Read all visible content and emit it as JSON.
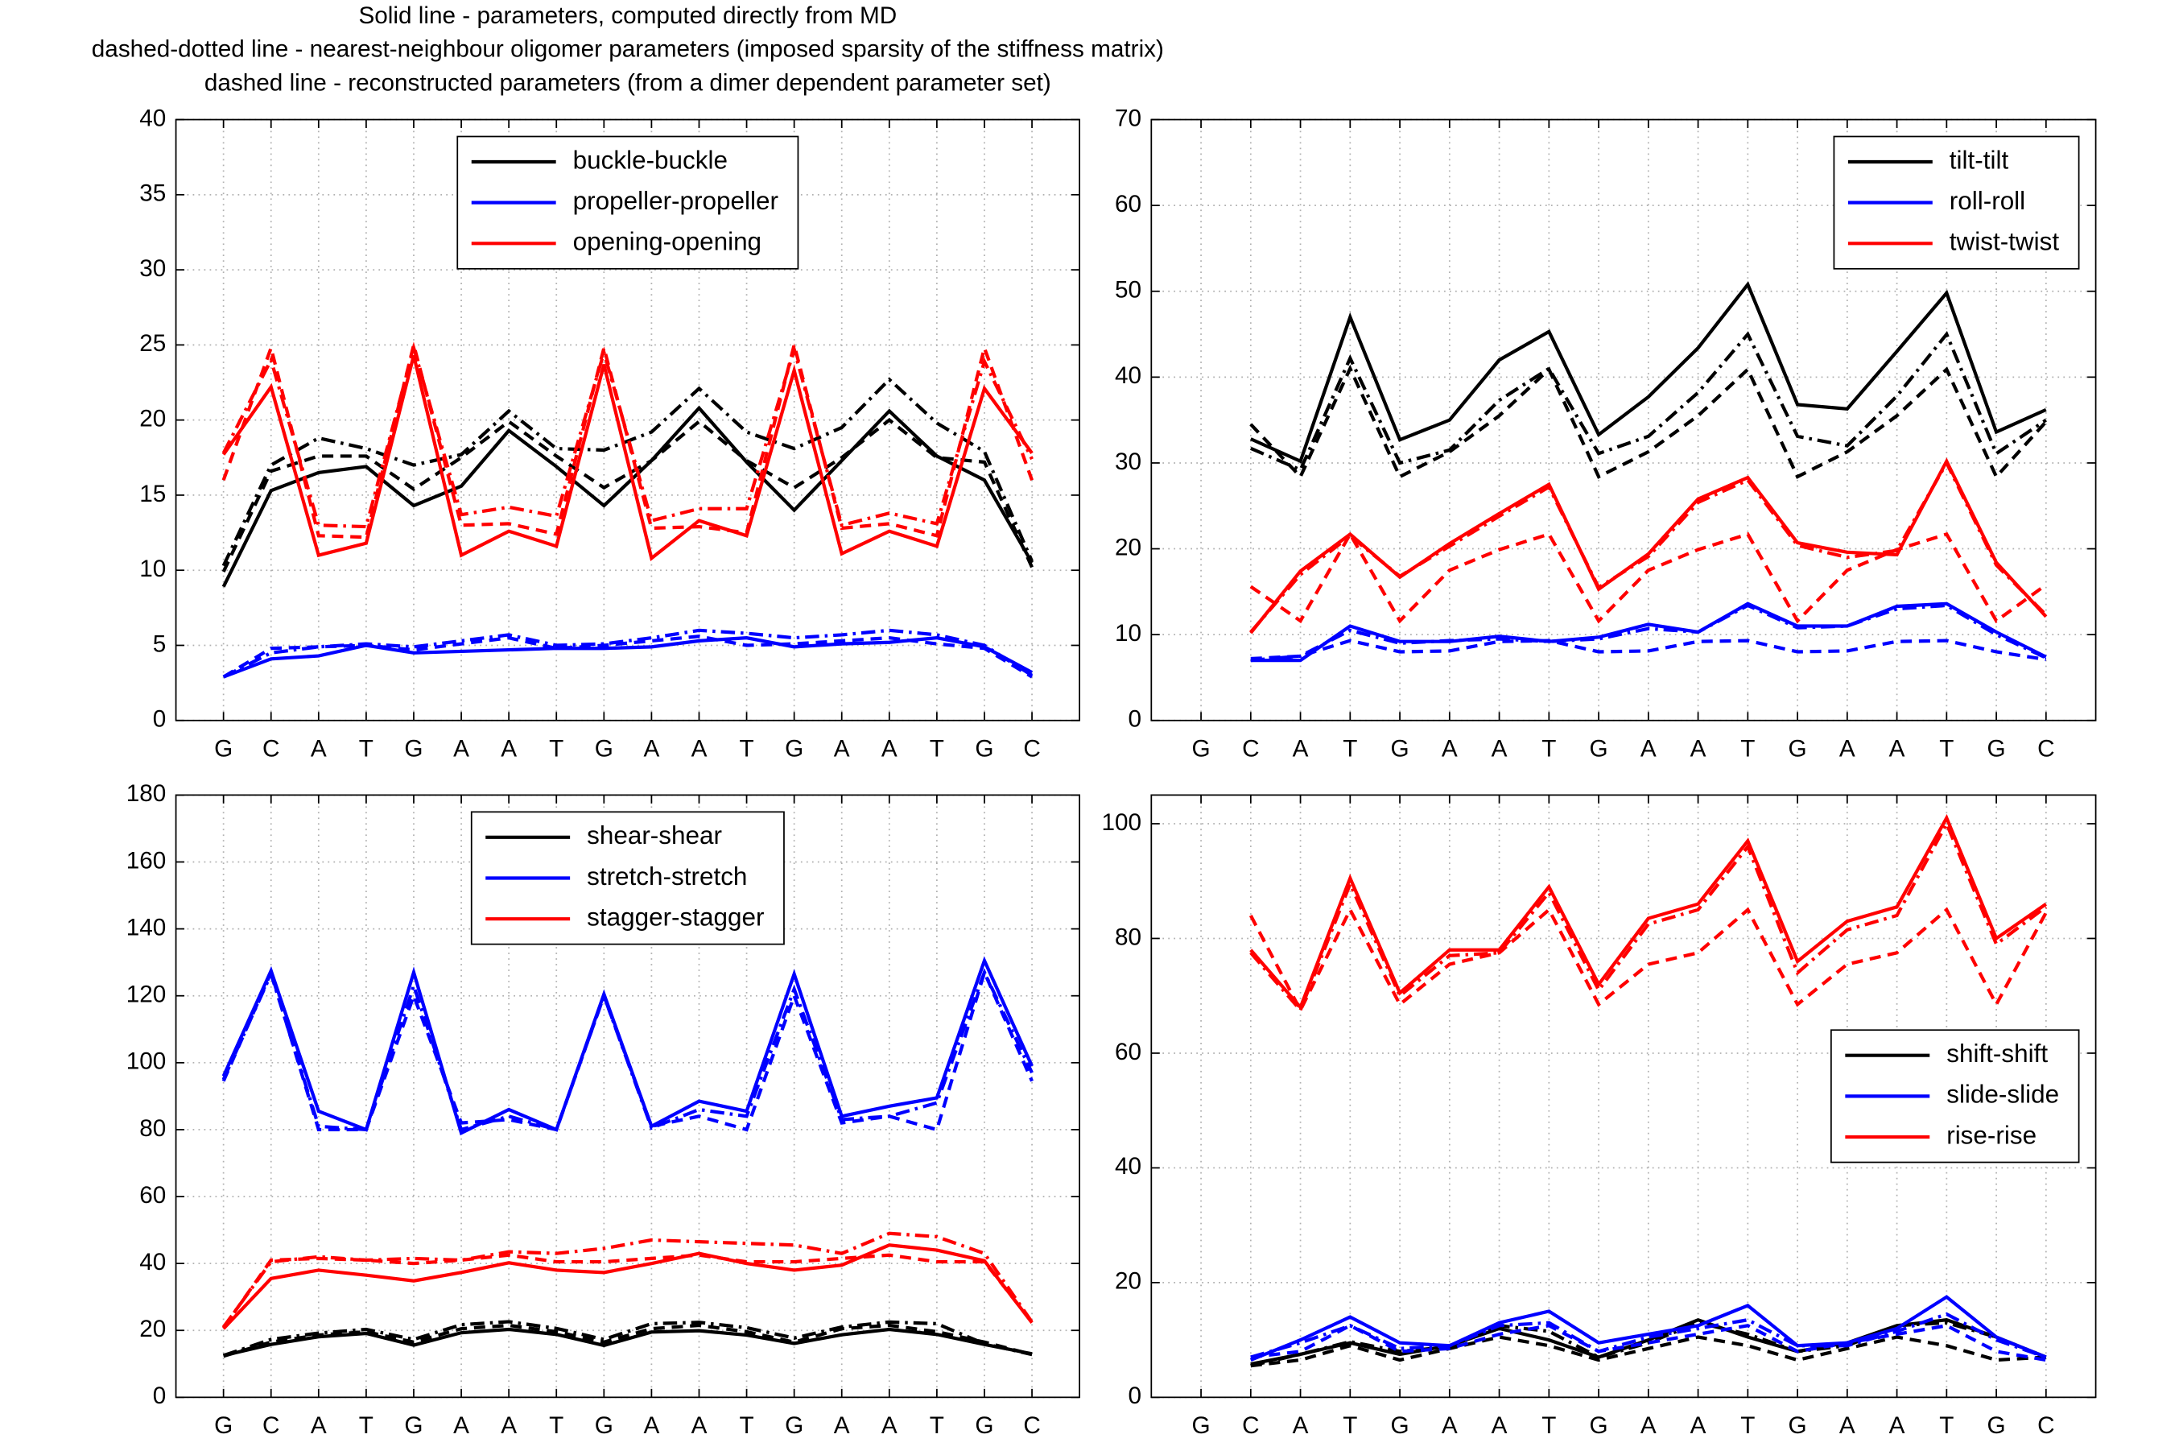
{
  "chart_data": [
    {
      "type": "line",
      "title": [
        "Solid line - parameters, computed directly from MD",
        "dashed-dotted line - nearest-neighbour oligomer parameters (imposed sparsity of the stiffness matrix)",
        "dashed line - reconstructed parameters (from a dimer dependent parameter set)"
      ],
      "categories": [
        "G",
        "C",
        "A",
        "T",
        "G",
        "A",
        "A",
        "T",
        "G",
        "A",
        "A",
        "T",
        "G",
        "A",
        "A",
        "T",
        "G",
        "C"
      ],
      "ylim": [
        0,
        40
      ],
      "yticks": [
        0,
        5,
        10,
        15,
        20,
        25,
        30,
        35,
        40
      ],
      "grid": true,
      "legend": "upper center",
      "series": [
        {
          "name": "buckle-buckle",
          "color": "#000000",
          "style": "solid",
          "values": [
            8.9,
            15.3,
            16.5,
            16.9,
            14.3,
            15.6,
            19.3,
            16.9,
            14.3,
            17.3,
            20.8,
            17.2,
            14.0,
            17.3,
            20.6,
            17.6,
            16.0,
            10.5
          ]
        },
        {
          "name": "buckle-buckle",
          "color": "#000000",
          "style": "dashdot",
          "values": [
            10.3,
            17.0,
            18.8,
            18.1,
            17.0,
            17.7,
            20.6,
            18.1,
            18.0,
            19.2,
            22.1,
            19.2,
            18.1,
            19.5,
            22.7,
            19.8,
            17.9,
            10.6
          ]
        },
        {
          "name": "buckle-buckle",
          "color": "#000000",
          "style": "dashed",
          "values": [
            9.9,
            16.6,
            17.6,
            17.6,
            15.4,
            17.5,
            19.9,
            17.6,
            15.5,
            17.3,
            19.9,
            17.3,
            15.5,
            17.5,
            20.0,
            17.5,
            17.2,
            10.2
          ]
        },
        {
          "name": "propeller-propeller",
          "color": "#0000ff",
          "style": "solid",
          "values": [
            2.9,
            4.1,
            4.3,
            5.0,
            4.5,
            4.6,
            4.7,
            4.8,
            4.8,
            4.9,
            5.3,
            5.5,
            4.9,
            5.1,
            5.2,
            5.5,
            4.9,
            3.2
          ]
        },
        {
          "name": "propeller-propeller",
          "color": "#0000ff",
          "style": "dashdot",
          "values": [
            2.9,
            4.5,
            4.9,
            5.1,
            4.9,
            5.3,
            5.7,
            5.0,
            5.1,
            5.5,
            6.0,
            5.8,
            5.5,
            5.7,
            6.0,
            5.7,
            5.0,
            3.0
          ]
        },
        {
          "name": "propeller-propeller",
          "color": "#0000ff",
          "style": "dashed",
          "values": [
            2.9,
            4.8,
            4.9,
            5.0,
            4.7,
            5.1,
            5.5,
            4.8,
            5.0,
            5.3,
            5.6,
            5.0,
            5.1,
            5.3,
            5.5,
            5.1,
            4.8,
            2.9
          ]
        },
        {
          "name": "opening-opening",
          "color": "#ff0000",
          "style": "solid",
          "values": [
            17.7,
            22.2,
            11.0,
            11.8,
            24.3,
            11.0,
            12.6,
            11.6,
            23.7,
            10.8,
            13.3,
            12.3,
            23.3,
            11.1,
            12.6,
            11.6,
            22.1,
            17.8
          ]
        },
        {
          "name": "opening-opening",
          "color": "#ff0000",
          "style": "dashdot",
          "values": [
            17.8,
            24.0,
            13.0,
            12.9,
            24.8,
            13.7,
            14.2,
            13.6,
            24.5,
            13.3,
            14.1,
            14.1,
            24.7,
            13.0,
            13.8,
            13.1,
            23.9,
            17.4
          ]
        },
        {
          "name": "opening-opening",
          "color": "#ff0000",
          "style": "dashed",
          "values": [
            16.0,
            24.8,
            12.3,
            12.2,
            25.0,
            13.0,
            13.1,
            12.4,
            24.8,
            12.8,
            12.9,
            12.5,
            25.0,
            12.8,
            13.1,
            12.3,
            24.8,
            16.0
          ]
        }
      ]
    },
    {
      "type": "line",
      "categories": [
        "G",
        "C",
        "A",
        "T",
        "G",
        "A",
        "A",
        "T",
        "G",
        "A",
        "A",
        "T",
        "G",
        "A",
        "A",
        "T",
        "G",
        "C"
      ],
      "ylim": [
        0,
        70
      ],
      "yticks": [
        0,
        10,
        20,
        30,
        40,
        50,
        60,
        70
      ],
      "grid": true,
      "legend": "upper right",
      "series": [
        {
          "name": "tilt-tilt",
          "color": "#000000",
          "style": "solid",
          "values": [
            null,
            32.8,
            30.2,
            47.0,
            32.7,
            35.0,
            42.0,
            45.3,
            33.3,
            37.7,
            43.4,
            50.8,
            36.8,
            36.3,
            43.0,
            49.8,
            33.6,
            36.2
          ]
        },
        {
          "name": "tilt-tilt",
          "color": "#000000",
          "style": "dashdot",
          "values": [
            null,
            31.7,
            29.2,
            42.2,
            30.0,
            31.5,
            37.3,
            41.0,
            31.1,
            33.1,
            38.2,
            45.0,
            33.1,
            32.0,
            37.8,
            45.0,
            31.1,
            35.0
          ]
        },
        {
          "name": "tilt-tilt",
          "color": "#000000",
          "style": "dashed",
          "values": [
            null,
            34.5,
            28.4,
            41.0,
            28.4,
            31.3,
            35.5,
            40.9,
            28.4,
            31.3,
            35.5,
            40.9,
            28.4,
            31.3,
            35.5,
            40.9,
            28.4,
            34.8
          ]
        },
        {
          "name": "roll-roll",
          "color": "#0000ff",
          "style": "solid",
          "values": [
            null,
            7.0,
            7.0,
            11.0,
            9.2,
            9.2,
            9.8,
            9.2,
            9.7,
            11.2,
            10.3,
            13.6,
            11.0,
            11.0,
            13.3,
            13.6,
            10.3,
            7.4
          ]
        },
        {
          "name": "roll-roll",
          "color": "#0000ff",
          "style": "dashdot",
          "values": [
            null,
            7.0,
            7.5,
            10.5,
            9.0,
            9.3,
            9.5,
            9.2,
            9.5,
            10.7,
            10.3,
            13.4,
            10.8,
            11.0,
            13.0,
            13.4,
            10.0,
            7.3
          ]
        },
        {
          "name": "roll-roll",
          "color": "#0000ff",
          "style": "dashed",
          "values": [
            null,
            7.2,
            7.5,
            9.3,
            8.0,
            8.1,
            9.2,
            9.3,
            8.0,
            8.1,
            9.2,
            9.3,
            8.0,
            8.1,
            9.2,
            9.3,
            8.0,
            7.1
          ]
        },
        {
          "name": "twist-twist",
          "color": "#ff0000",
          "style": "solid",
          "values": [
            null,
            10.2,
            17.4,
            21.7,
            16.7,
            20.6,
            24.1,
            27.5,
            15.3,
            19.4,
            25.8,
            28.3,
            20.7,
            19.6,
            19.3,
            30.2,
            18.4,
            12.1
          ]
        },
        {
          "name": "twist-twist",
          "color": "#ff0000",
          "style": "dashdot",
          "values": [
            null,
            10.3,
            17.0,
            21.5,
            16.8,
            20.3,
            23.8,
            27.2,
            15.5,
            19.1,
            25.4,
            28.0,
            20.4,
            19.0,
            19.8,
            30.0,
            18.1,
            12.3
          ]
        },
        {
          "name": "twist-twist",
          "color": "#ff0000",
          "style": "dashed",
          "values": [
            null,
            15.6,
            11.6,
            21.7,
            11.6,
            17.5,
            19.9,
            21.7,
            11.6,
            17.5,
            19.9,
            21.7,
            11.6,
            17.5,
            19.9,
            21.7,
            11.6,
            15.8
          ]
        }
      ]
    },
    {
      "type": "line",
      "categories": [
        "G",
        "C",
        "A",
        "T",
        "G",
        "A",
        "A",
        "T",
        "G",
        "A",
        "A",
        "T",
        "G",
        "A",
        "A",
        "T",
        "G",
        "C"
      ],
      "ylim": [
        0,
        180
      ],
      "yticks": [
        0,
        20,
        40,
        60,
        80,
        100,
        120,
        140,
        160,
        180
      ],
      "grid": true,
      "legend": "upper center",
      "series": [
        {
          "name": "shear-shear",
          "color": "#000000",
          "style": "solid",
          "values": [
            12.5,
            15.8,
            18.1,
            19.1,
            15.6,
            19.3,
            20.3,
            18.8,
            15.5,
            19.5,
            19.9,
            18.6,
            16.1,
            18.7,
            20.3,
            18.8,
            15.8,
            13.0
          ]
        },
        {
          "name": "shear-shear",
          "color": "#000000",
          "style": "dashdot",
          "values": [
            12.5,
            17.3,
            19.2,
            20.3,
            17.3,
            21.7,
            22.6,
            20.6,
            17.3,
            22.0,
            22.4,
            20.8,
            17.7,
            21.0,
            22.5,
            22.0,
            16.0,
            12.8
          ]
        },
        {
          "name": "shear-shear",
          "color": "#000000",
          "style": "dashed",
          "values": [
            12.3,
            16.5,
            18.6,
            19.6,
            16.5,
            20.5,
            21.5,
            19.6,
            16.5,
            20.5,
            21.5,
            19.6,
            16.5,
            20.5,
            21.5,
            19.6,
            16.5,
            12.8
          ]
        },
        {
          "name": "stretch-stretch",
          "color": "#0000ff",
          "style": "solid",
          "values": [
            96.0,
            127.5,
            85.5,
            80.0,
            127.0,
            79.0,
            86.0,
            80.0,
            120.5,
            81.0,
            88.5,
            85.5,
            126.5,
            84.0,
            87.0,
            89.5,
            130.5,
            99.0
          ]
        },
        {
          "name": "stretch-stretch",
          "color": "#0000ff",
          "style": "dashdot",
          "values": [
            95.0,
            126.5,
            81.0,
            80.0,
            123.0,
            80.0,
            84.0,
            80.0,
            120.0,
            80.5,
            86.0,
            84.0,
            122.0,
            83.0,
            84.0,
            88.0,
            127.0,
            97.0
          ]
        },
        {
          "name": "stretch-stretch",
          "color": "#0000ff",
          "style": "dashed",
          "values": [
            94.5,
            127.0,
            80.0,
            80.0,
            120.0,
            82.0,
            83.0,
            80.0,
            120.0,
            81.0,
            84.0,
            80.0,
            120.0,
            82.0,
            84.0,
            80.0,
            127.0,
            94.5
          ]
        },
        {
          "name": "stagger-stagger",
          "color": "#ff0000",
          "style": "solid",
          "values": [
            20.5,
            35.5,
            38.0,
            36.5,
            34.8,
            37.3,
            40.2,
            38.0,
            37.3,
            40.0,
            43.0,
            40.0,
            38.0,
            39.5,
            45.5,
            44.0,
            40.8,
            22.3
          ]
        },
        {
          "name": "stagger-stagger",
          "color": "#ff0000",
          "style": "dashdot",
          "values": [
            21.0,
            40.5,
            42.0,
            41.0,
            41.5,
            41.0,
            43.5,
            43.0,
            44.5,
            47.0,
            46.5,
            46.0,
            45.5,
            43.0,
            49.0,
            48.0,
            43.0,
            22.5
          ]
        },
        {
          "name": "stagger-stagger",
          "color": "#ff0000",
          "style": "dashed",
          "values": [
            20.8,
            41.0,
            41.5,
            41.0,
            40.0,
            41.0,
            42.5,
            40.5,
            40.5,
            41.5,
            42.5,
            40.5,
            40.5,
            41.5,
            42.5,
            40.5,
            40.5,
            22.5
          ]
        }
      ]
    },
    {
      "type": "line",
      "categories": [
        "G",
        "C",
        "A",
        "T",
        "G",
        "A",
        "A",
        "T",
        "G",
        "A",
        "A",
        "T",
        "G",
        "A",
        "A",
        "T",
        "G",
        "C"
      ],
      "ylim": [
        0,
        105
      ],
      "yticks": [
        0,
        20,
        40,
        60,
        80,
        100
      ],
      "grid": true,
      "legend": "center right",
      "series": [
        {
          "name": "shift-shift",
          "color": "#000000",
          "style": "solid",
          "values": [
            null,
            5.8,
            7.5,
            9.5,
            7.5,
            9.0,
            12.0,
            10.0,
            7.0,
            10.0,
            13.5,
            10.5,
            8.0,
            9.5,
            12.5,
            13.5,
            10.5,
            7.0
          ]
        },
        {
          "name": "shift-shift",
          "color": "#000000",
          "style": "dashdot",
          "values": [
            null,
            5.5,
            7.5,
            9.7,
            8.0,
            8.8,
            12.5,
            11.5,
            7.0,
            9.5,
            13.0,
            11.0,
            8.0,
            9.0,
            12.5,
            13.0,
            10.5,
            7.0
          ]
        },
        {
          "name": "shift-shift",
          "color": "#000000",
          "style": "dashed",
          "values": [
            null,
            5.5,
            6.5,
            9.0,
            6.5,
            8.5,
            10.5,
            9.0,
            6.5,
            8.5,
            10.5,
            9.0,
            6.5,
            8.5,
            10.5,
            9.0,
            6.5,
            7.0
          ]
        },
        {
          "name": "slide-slide",
          "color": "#0000ff",
          "style": "solid",
          "values": [
            null,
            6.5,
            10.0,
            14.0,
            9.5,
            9.0,
            13.0,
            15.0,
            9.5,
            11.0,
            12.5,
            16.0,
            9.0,
            9.5,
            12.0,
            17.5,
            10.5,
            7.0
          ]
        },
        {
          "name": "slide-slide",
          "color": "#0000ff",
          "style": "dashdot",
          "values": [
            null,
            7.0,
            9.5,
            12.5,
            8.5,
            9.0,
            12.5,
            13.0,
            8.0,
            10.5,
            12.0,
            13.5,
            9.0,
            9.0,
            11.5,
            14.5,
            10.0,
            7.0
          ]
        },
        {
          "name": "slide-slide",
          "color": "#0000ff",
          "style": "dashed",
          "values": [
            null,
            7.0,
            8.0,
            12.5,
            8.0,
            8.5,
            11.0,
            12.5,
            8.0,
            9.5,
            11.0,
            12.5,
            8.0,
            9.5,
            11.0,
            12.5,
            8.0,
            6.5
          ]
        },
        {
          "name": "rise-rise",
          "color": "#ff0000",
          "style": "solid",
          "values": [
            null,
            78,
            68,
            90.5,
            70.5,
            78,
            78,
            89,
            72,
            83.5,
            86,
            97,
            76,
            83,
            85.5,
            101,
            80,
            86
          ]
        },
        {
          "name": "rise-rise",
          "color": "#ff0000",
          "style": "dashdot",
          "values": [
            null,
            77.5,
            67.5,
            89.5,
            70,
            77,
            77.5,
            88,
            71,
            82.5,
            85,
            96,
            74,
            81.5,
            84,
            100,
            79,
            85.5
          ]
        },
        {
          "name": "rise-rise",
          "color": "#ff0000",
          "style": "dashed",
          "values": [
            null,
            84,
            67.5,
            85,
            68.5,
            75.5,
            77.5,
            85,
            68.5,
            75.5,
            77.5,
            85,
            68.5,
            75.5,
            77.5,
            85,
            68.5,
            84.5
          ]
        }
      ]
    }
  ]
}
